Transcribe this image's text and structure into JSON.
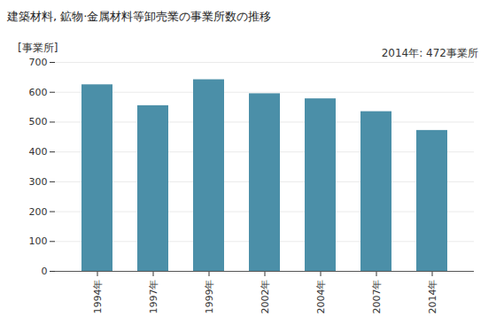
{
  "chart_data": {
    "type": "bar",
    "title": "建築材料, 鉱物·金属材料等卸売業の事業所数の推移",
    "y_label": "[事業所]",
    "annotation": "2014年: 472事業所",
    "categories": [
      "1994年",
      "1997年",
      "1999年",
      "2002年",
      "2004年",
      "2007年",
      "2014年"
    ],
    "values": [
      625,
      555,
      642,
      595,
      578,
      535,
      472
    ],
    "color": "#4b8fa8",
    "ylim": [
      0,
      700
    ],
    "yticks": [
      0,
      100,
      200,
      300,
      400,
      500,
      600,
      700
    ],
    "grid": true
  }
}
